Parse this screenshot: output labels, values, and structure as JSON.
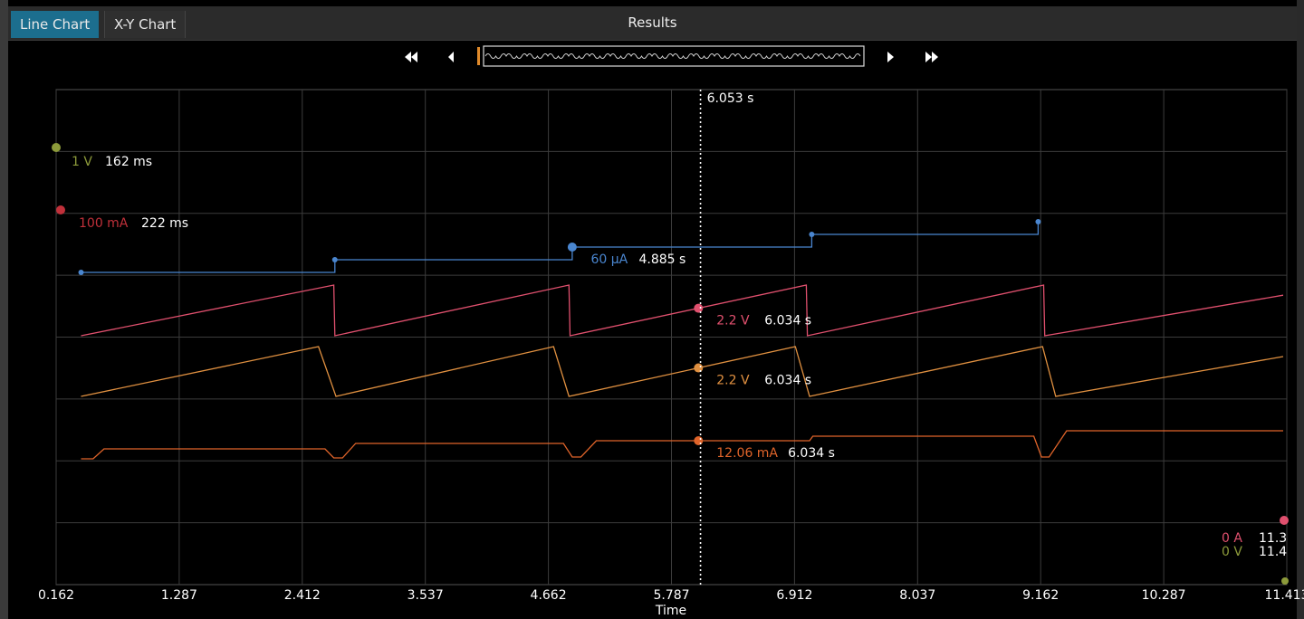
{
  "app": {
    "tabs": [
      {
        "label": "Line Chart",
        "active": true
      },
      {
        "label": "X-Y Chart",
        "active": false
      }
    ],
    "title": "Results"
  },
  "colors": {
    "blue": "#4a86d0",
    "pink": "#e0506e",
    "orange": "#e09040",
    "red_orange": "#e0642a",
    "olive": "#8c9a3a",
    "red": "#c0303a",
    "grid": "#3c3c3c",
    "cursor": "#ffffff"
  },
  "chart_data": {
    "type": "line",
    "xlabel": "Time",
    "xlim": [
      0.162,
      11.413
    ],
    "x_ticks": [
      "0.162",
      "1.287",
      "2.412",
      "3.537",
      "4.662",
      "5.787",
      "6.912",
      "8.037",
      "9.162",
      "10.287",
      "11.413"
    ],
    "cursor": {
      "x": 6.053,
      "label": "6.053 s"
    },
    "axis_markers": [
      {
        "value": "1 V",
        "time": "162 ms",
        "color": "#8c9a3a"
      },
      {
        "value": "100 mA",
        "time": "222 ms",
        "color": "#c0303a"
      },
      {
        "value": "0 A",
        "time": "11.3",
        "color": "#e0506e"
      },
      {
        "value": "0 V",
        "time": "11.4",
        "color": "#8c9a3a"
      }
    ],
    "series": [
      {
        "color": "#4a86d0",
        "kind": "step",
        "x": [
          0.39,
          2.71,
          4.88,
          7.07,
          9.14
        ],
        "y": [
          0,
          1,
          2,
          3,
          4
        ],
        "readout": {
          "value": "60 µA",
          "time": "4.885 s",
          "at_x": 4.885
        }
      },
      {
        "color": "#e0506e",
        "kind": "sawtooth",
        "x": [
          0.39,
          2.7,
          2.71,
          4.85,
          4.86,
          7.02,
          7.03,
          9.19,
          9.2,
          11.38
        ],
        "y": [
          0,
          1,
          0,
          1,
          0,
          1,
          0,
          1,
          0,
          0.8
        ],
        "readout": {
          "value": "2.2 V",
          "time": "6.034 s",
          "at_x": 6.034
        }
      },
      {
        "color": "#e09040",
        "kind": "sawtooth",
        "x": [
          0.39,
          2.56,
          2.72,
          4.71,
          4.85,
          6.92,
          7.05,
          9.18,
          9.3,
          11.38
        ],
        "y": [
          0,
          1,
          0,
          1,
          0,
          1,
          0,
          1,
          0,
          0.8
        ],
        "readout": {
          "value": "2.2 V",
          "time": "6.034 s",
          "at_x": 6.034
        }
      },
      {
        "color": "#e0642a",
        "kind": "level",
        "x": [
          0.39,
          0.5,
          0.6,
          2.62,
          2.7,
          2.78,
          2.9,
          4.8,
          4.88,
          4.96,
          5.1,
          7.05,
          7.08,
          9.1,
          9.17,
          9.24,
          9.4,
          11.38
        ],
        "y": [
          0,
          0,
          0.55,
          0.55,
          0.05,
          0.05,
          0.85,
          0.85,
          0.1,
          0.1,
          1.0,
          1.0,
          1.25,
          1.25,
          0.1,
          0.1,
          1.55,
          1.55
        ],
        "readout": {
          "value": "12.06 mA",
          "time": "6.034 s",
          "at_x": 6.034
        }
      }
    ]
  }
}
